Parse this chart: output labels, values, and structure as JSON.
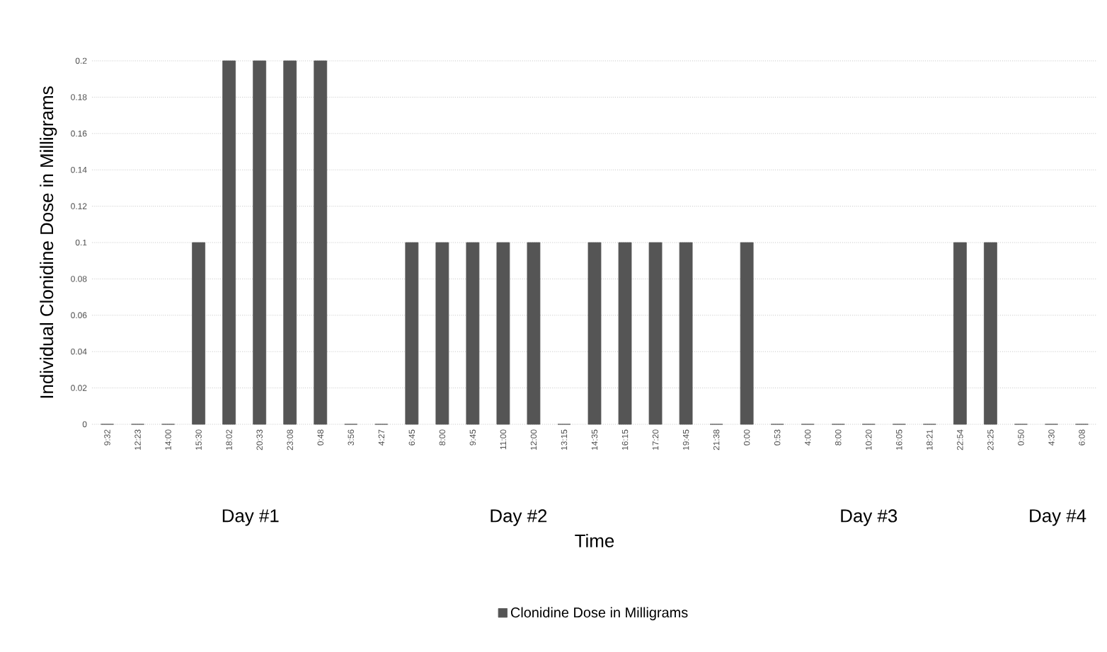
{
  "chart_data": {
    "type": "bar",
    "xlabel": "Time",
    "ylabel": "Individual Clonidine Dose in Milligrams",
    "categories": [
      "9:32",
      "12:23",
      "14:00",
      "15:30",
      "18:02",
      "20:33",
      "23:08",
      "0:48",
      "3:56",
      "4:27",
      "6:45",
      "8:00",
      "9:45",
      "11:00",
      "12:00",
      "13:15",
      "14:35",
      "16:15",
      "17:20",
      "19:45",
      "21:38",
      "0:00",
      "0:53",
      "4:00",
      "8:00",
      "10:20",
      "16:05",
      "18:21",
      "22:54",
      "23:25",
      "0:50",
      "4:30",
      "6:08"
    ],
    "series": [
      {
        "name": "Clonidine Dose in Milligrams",
        "color": "#555555",
        "values": [
          0,
          0,
          0,
          0.1,
          0.2,
          0.2,
          0.2,
          0.2,
          0,
          0,
          0.1,
          0.1,
          0.1,
          0.1,
          0.1,
          0,
          0.1,
          0.1,
          0.1,
          0.1,
          0,
          0.1,
          0,
          0,
          0,
          0,
          0,
          0,
          0.1,
          0.1,
          0,
          0,
          0
        ]
      }
    ],
    "annotations": [
      "Day #1",
      "Day #2",
      "Day #3",
      "Day #4"
    ],
    "ylim": [
      0,
      0.2
    ],
    "yticks": [
      0,
      0.02,
      0.04,
      0.06,
      0.08,
      0.1,
      0.12,
      0.14,
      0.16,
      0.18,
      0.2
    ],
    "grid": "y",
    "legend": "bottom"
  }
}
